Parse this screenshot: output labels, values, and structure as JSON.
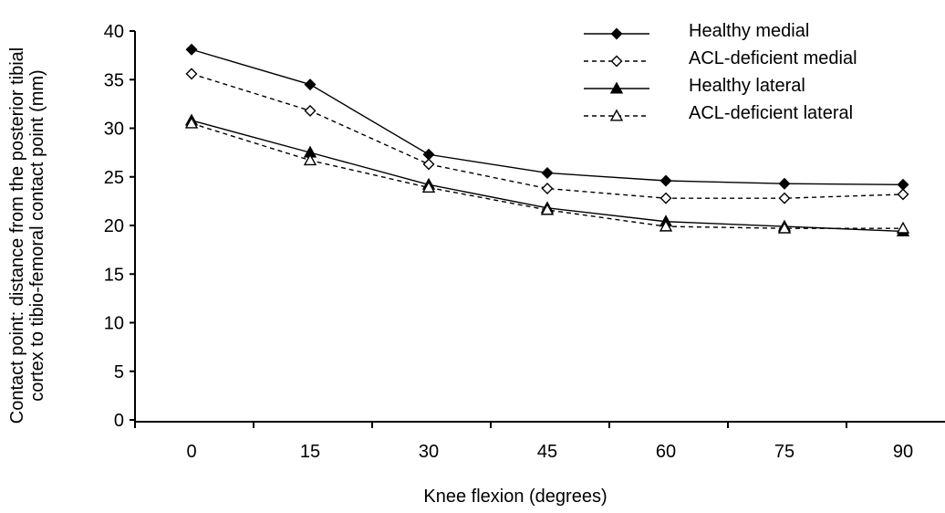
{
  "chart_data": {
    "type": "line",
    "xlabel": "Knee flexion (degrees)",
    "ylabel_lines": [
      "Contact point: distance from the posterior tibial",
      "cortex to tibio-femoral contact point (mm)"
    ],
    "x": [
      0,
      15,
      30,
      45,
      60,
      75,
      90
    ],
    "x_tick_labels": [
      "0",
      "15",
      "30",
      "45",
      "60",
      "75",
      "90"
    ],
    "y_tick_labels": [
      "0",
      "5",
      "10",
      "15",
      "20",
      "25",
      "30",
      "35",
      "40"
    ],
    "ylim": [
      0,
      40
    ],
    "legend_position": "top-right",
    "series": [
      {
        "name": "Healthy medial",
        "marker": "diamond",
        "filled": true,
        "dashed": false,
        "values": [
          38.1,
          34.5,
          27.3,
          25.4,
          24.6,
          24.3,
          24.2
        ]
      },
      {
        "name": "ACL-deficient medial",
        "marker": "diamond",
        "filled": false,
        "dashed": true,
        "values": [
          35.6,
          31.8,
          26.3,
          23.8,
          22.8,
          22.8,
          23.2
        ]
      },
      {
        "name": "Healthy lateral",
        "marker": "triangle",
        "filled": true,
        "dashed": false,
        "values": [
          30.8,
          27.5,
          24.2,
          21.8,
          20.4,
          19.9,
          19.4
        ]
      },
      {
        "name": "ACL-deficient lateral",
        "marker": "triangle",
        "filled": false,
        "dashed": true,
        "values": [
          30.5,
          26.7,
          23.9,
          21.6,
          19.9,
          19.7,
          19.7
        ]
      }
    ]
  }
}
